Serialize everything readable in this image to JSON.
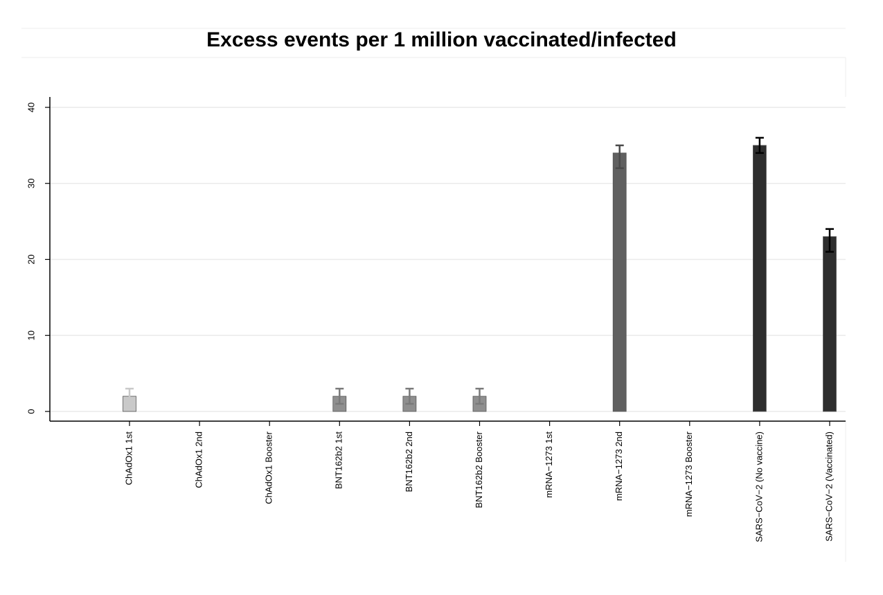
{
  "chart_data": {
    "type": "bar",
    "title": "Excess events per 1 million vaccinated/infected",
    "xlabel": "",
    "ylabel": "",
    "ylim": [
      0,
      40
    ],
    "yticks": [
      0,
      10,
      20,
      30,
      40
    ],
    "grid": true,
    "categories": [
      "ChAdOx1 1st",
      "ChAdOx1 2nd",
      "ChAdOx1 Booster",
      "BNT162b2 1st",
      "BNT162b2 2nd",
      "BNT162b2 Booster",
      "mRNA−1273 1st",
      "mRNA−1273 2nd",
      "mRNA−1273 Booster",
      "SARS−CoV−2 (No vaccine)",
      "SARS−CoV−2 (Vaccinated)"
    ],
    "values": [
      2,
      0,
      0,
      2,
      2,
      2,
      0,
      34,
      0,
      35,
      23
    ],
    "error_low": [
      1,
      0,
      0,
      1,
      1,
      1,
      0,
      32,
      0,
      34,
      21
    ],
    "error_high": [
      3,
      0,
      0,
      3,
      3,
      3,
      0,
      35,
      0,
      36,
      24
    ],
    "colors": [
      "#c9c9c9",
      "#c9c9c9",
      "#c9c9c9",
      "#8f8f8f",
      "#8f8f8f",
      "#8f8f8f",
      "#606060",
      "#606060",
      "#606060",
      "#2e2e2e",
      "#2e2e2e"
    ],
    "error_colors": [
      "#c9c9c9",
      "#c9c9c9",
      "#c9c9c9",
      "#7a7a7a",
      "#7a7a7a",
      "#7a7a7a",
      "#4a4a4a",
      "#4a4a4a",
      "#4a4a4a",
      "#000000",
      "#000000"
    ]
  }
}
